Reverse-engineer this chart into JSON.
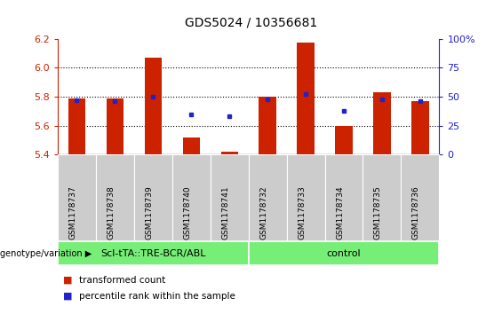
{
  "title": "GDS5024 / 10356681",
  "samples": [
    "GSM1178737",
    "GSM1178738",
    "GSM1178739",
    "GSM1178740",
    "GSM1178741",
    "GSM1178732",
    "GSM1178733",
    "GSM1178734",
    "GSM1178735",
    "GSM1178736"
  ],
  "transformed_counts": [
    5.79,
    5.79,
    6.07,
    5.52,
    5.42,
    5.8,
    6.17,
    5.6,
    5.83,
    5.77
  ],
  "percentile_ranks": [
    47,
    46,
    50,
    35,
    33,
    48,
    52,
    38,
    48,
    46
  ],
  "ylim": [
    5.4,
    6.2
  ],
  "ylim_right": [
    0,
    100
  ],
  "yticks_left": [
    5.4,
    5.6,
    5.8,
    6.0,
    6.2
  ],
  "yticks_right": [
    0,
    25,
    50,
    75,
    100
  ],
  "ytick_labels_right": [
    "0",
    "25",
    "50",
    "75",
    "100%"
  ],
  "bar_color": "#cc2200",
  "dot_color": "#2222cc",
  "bar_bottom": 5.4,
  "bar_width": 0.45,
  "groups": [
    {
      "label": "Scl-tTA::TRE-BCR/ABL",
      "n": 5,
      "color": "#77ee77"
    },
    {
      "label": "control",
      "n": 5,
      "color": "#77ee77"
    }
  ],
  "group_label_prefix": "genotype/variation",
  "legend_items": [
    {
      "color": "#cc2200",
      "label": "transformed count"
    },
    {
      "color": "#2222cc",
      "label": "percentile rank within the sample"
    }
  ],
  "grid_color": "black",
  "axis_left_color": "#cc2200",
  "axis_right_color": "#2222cc",
  "cell_bg_color": "#cccccc",
  "plot_bg_color": "#ffffff",
  "tick_fontsize": 8,
  "label_fontsize": 8
}
